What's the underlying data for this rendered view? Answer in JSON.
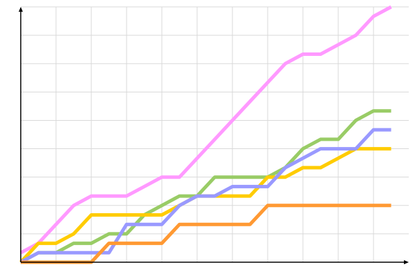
{
  "chart_data": {
    "type": "line",
    "title": "",
    "xlabel": "",
    "ylabel": "",
    "x": [
      0,
      1,
      2,
      3,
      4,
      5,
      6,
      7,
      8,
      9,
      10,
      11,
      12,
      13,
      14,
      15,
      16,
      17,
      18,
      19,
      20,
      21
    ],
    "xlim": [
      0,
      22
    ],
    "ylim": [
      0,
      27
    ],
    "x_grid_step": 2,
    "y_grid_step": 3,
    "grid": true,
    "tick_labels": false,
    "legend": "none",
    "series": [
      {
        "color": "#ff99ff",
        "values": [
          1,
          2,
          4,
          6,
          7,
          7,
          7,
          8,
          9,
          9,
          11,
          13,
          15,
          17,
          19,
          21,
          22,
          22,
          23,
          24,
          26,
          27
        ]
      },
      {
        "color": "#99cc66",
        "values": [
          0,
          1,
          1,
          2,
          2,
          3,
          3,
          5,
          6,
          7,
          7,
          9,
          9,
          9,
          9,
          10,
          12,
          13,
          13,
          15,
          16,
          16
        ]
      },
      {
        "color": "#ffcc00",
        "values": [
          0,
          2,
          2,
          3,
          5,
          5,
          5,
          5,
          5,
          6,
          7,
          7,
          7,
          7,
          9,
          9,
          10,
          10,
          11,
          12,
          12,
          12
        ]
      },
      {
        "color": "#9999ff",
        "values": [
          0,
          1,
          1,
          1,
          1,
          1,
          4,
          4,
          4,
          6,
          7,
          7,
          8,
          8,
          8,
          10,
          11,
          12,
          12,
          12,
          14,
          14
        ]
      },
      {
        "color": "#ff9933",
        "values": [
          0,
          0,
          0,
          0,
          0,
          2,
          2,
          2,
          2,
          4,
          4,
          4,
          4,
          4,
          6,
          6,
          6,
          6,
          6,
          6,
          6,
          6
        ]
      }
    ]
  }
}
